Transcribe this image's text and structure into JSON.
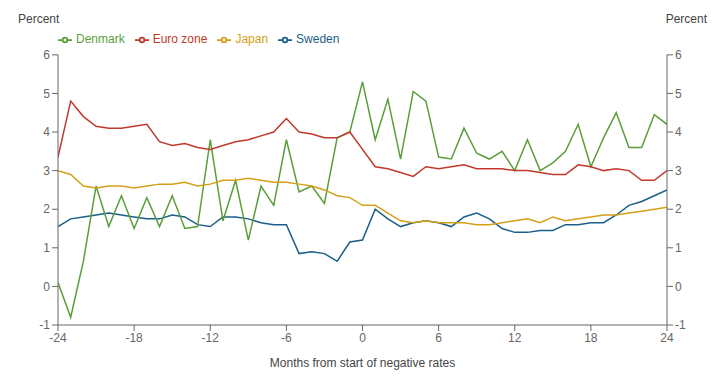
{
  "chart_data": {
    "type": "line",
    "xlabel": "Months from start of negative rates",
    "ylabel": "Percent",
    "y2label": "Percent",
    "x": [
      -24,
      -23,
      -22,
      -21,
      -20,
      -19,
      -18,
      -17,
      -16,
      -15,
      -14,
      -13,
      -12,
      -11,
      -10,
      -9,
      -8,
      -7,
      -6,
      -5,
      -4,
      -3,
      -2,
      -1,
      0,
      1,
      2,
      3,
      4,
      5,
      6,
      7,
      8,
      9,
      10,
      11,
      12,
      13,
      14,
      15,
      16,
      17,
      18,
      19,
      20,
      21,
      22,
      23,
      24
    ],
    "series": [
      {
        "name": "Sweden",
        "color": "#1a5e8a",
        "values": [
          1.55,
          1.75,
          1.8,
          1.85,
          1.9,
          1.85,
          1.8,
          1.75,
          1.75,
          1.85,
          1.8,
          1.6,
          1.55,
          1.8,
          1.8,
          1.75,
          1.65,
          1.6,
          1.6,
          0.85,
          0.9,
          0.85,
          0.65,
          1.15,
          1.2,
          2.0,
          1.75,
          1.55,
          1.65,
          1.7,
          1.65,
          1.55,
          1.8,
          1.9,
          1.75,
          1.5,
          1.4,
          1.4,
          1.45,
          1.45,
          1.6,
          1.6,
          1.65,
          1.65,
          1.85,
          2.1,
          2.2,
          2.35,
          2.5
        ]
      },
      {
        "name": "Denmark",
        "color": "#5a9e3a",
        "values": [
          0.1,
          -0.8,
          0.65,
          2.6,
          1.55,
          2.35,
          1.5,
          2.3,
          1.55,
          2.35,
          1.5,
          1.55,
          3.8,
          1.7,
          2.75,
          1.2,
          2.6,
          2.1,
          3.8,
          2.45,
          2.6,
          2.15,
          3.85,
          4.0,
          5.3,
          3.8,
          4.85,
          3.3,
          5.05,
          4.8,
          3.35,
          3.3,
          4.1,
          3.45,
          3.3,
          3.5,
          3.0,
          3.8,
          3.0,
          3.2,
          3.5,
          4.2,
          3.1,
          3.85,
          4.5,
          3.6,
          3.6,
          4.45,
          4.2
        ]
      },
      {
        "name": "Euro zone",
        "color": "#c0392b",
        "values": [
          3.35,
          4.8,
          4.4,
          4.15,
          4.1,
          4.1,
          4.15,
          4.2,
          3.75,
          3.65,
          3.7,
          3.6,
          3.55,
          3.65,
          3.75,
          3.8,
          3.9,
          4.0,
          4.35,
          4.0,
          3.95,
          3.85,
          3.85,
          4.0,
          3.55,
          3.1,
          3.05,
          2.95,
          2.85,
          3.1,
          3.05,
          3.1,
          3.15,
          3.05,
          3.05,
          3.05,
          3.0,
          3.0,
          2.95,
          2.9,
          2.9,
          3.15,
          3.1,
          3.0,
          3.05,
          3.0,
          2.75,
          2.75,
          3.0
        ]
      },
      {
        "name": "Japan",
        "color": "#d4a017",
        "values": [
          3.0,
          2.9,
          2.6,
          2.55,
          2.6,
          2.6,
          2.55,
          2.6,
          2.65,
          2.65,
          2.7,
          2.6,
          2.65,
          2.75,
          2.75,
          2.8,
          2.75,
          2.7,
          2.7,
          2.65,
          2.6,
          2.5,
          2.35,
          2.3,
          2.1,
          2.1,
          1.9,
          1.7,
          1.65,
          1.7,
          1.65,
          1.65,
          1.65,
          1.6,
          1.6,
          1.65,
          1.7,
          1.75,
          1.65,
          1.8,
          1.7,
          1.75,
          1.8,
          1.85,
          1.85,
          1.9,
          1.95,
          2.0,
          2.05
        ]
      }
    ],
    "xlim": [
      -24,
      24
    ],
    "xticks": [
      -24,
      -18,
      -12,
      -6,
      0,
      6,
      12,
      18,
      24
    ],
    "ylim": [
      -1,
      6
    ],
    "yticks": [
      -1,
      0,
      1,
      2,
      3,
      4,
      5,
      6
    ],
    "y2lim": [
      -1,
      6
    ],
    "y2ticks": [
      -1,
      0,
      1,
      2,
      3,
      4,
      5,
      6
    ],
    "legend": "upper left"
  }
}
